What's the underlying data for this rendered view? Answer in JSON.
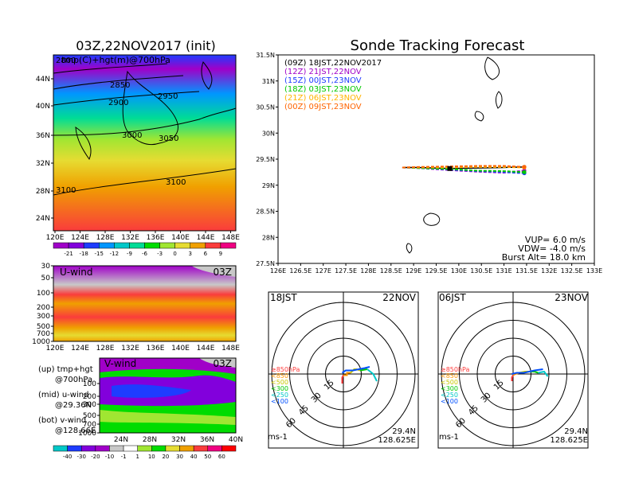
{
  "map_panel": {
    "title": "03Z,22NOV2017 (init)",
    "subtitle": "tmp(C)+hgt(m)@700hPa",
    "lat_ticks": [
      "44N",
      "40N",
      "36N",
      "32N",
      "28N",
      "24N"
    ],
    "lon_ticks": [
      "120E",
      "124E",
      "128E",
      "132E",
      "136E",
      "140E",
      "144E",
      "148E"
    ],
    "contour_labels": [
      "2800",
      "2850",
      "2900",
      "2950",
      "3000",
      "3050",
      "3100",
      "3100"
    ],
    "colorbar_labels": [
      "-21",
      "-18",
      "-15",
      "-12",
      "-9",
      "-6",
      "-3",
      "0",
      "3",
      "6",
      "9"
    ],
    "colorbar_colors": [
      "#a000c8",
      "#8200dc",
      "#1e3cff",
      "#0096ff",
      "#00c8c8",
      "#00dc96",
      "#00dc00",
      "#a0e632",
      "#e6dc32",
      "#f0a000",
      "#fa3c3c",
      "#f00082"
    ]
  },
  "uwind_panel": {
    "label": "U-wind",
    "time": "03Z",
    "p_ticks": [
      "30",
      "50",
      "100",
      "200",
      "300",
      "500",
      "700",
      "1000"
    ],
    "lon_ticks": [
      "120E",
      "124E",
      "128E",
      "132E",
      "136E",
      "140E",
      "144E",
      "148E"
    ]
  },
  "vwind_panel": {
    "label": "V-wind",
    "time": "03Z",
    "p_ticks": [
      "100",
      "200",
      "300",
      "500",
      "700",
      "1000"
    ],
    "lat_ticks": [
      "24N",
      "28N",
      "32N",
      "36N",
      "40N"
    ],
    "colorbar_labels": [
      "-40",
      "-30",
      "-20",
      "-10",
      "-1",
      "1",
      "10",
      "20",
      "30",
      "40",
      "50",
      "60"
    ],
    "colorbar_colors": [
      "#00c8c8",
      "#1e3cff",
      "#8200dc",
      "#a000c8",
      "#c8c8c8",
      "#ffffff",
      "#a0e632",
      "#00dc00",
      "#e6dc32",
      "#f0a000",
      "#fa3c3c",
      "#f00082",
      "#ff0000"
    ]
  },
  "legend_notes": {
    "line1": "(up) tmp+hgt",
    "line2": "@700hPa",
    "line3": "(mid) u-wind",
    "line4": "@29.36N",
    "line5": "(bot) v-wind",
    "line6": "@128.66E"
  },
  "tracking_panel": {
    "title": "Sonde Tracking Forecast",
    "vup": "VUP= 6.0 m/s",
    "vdw": "VDW= -4.0 m/s",
    "burst": "Burst Alt= 18.0 km"
  },
  "hodo_left": {
    "time": "18JST",
    "date": "22NOV",
    "lat": "29.4N",
    "lon": "128.625E",
    "unit": "ms-1"
  },
  "hodo_right": {
    "time": "06JST",
    "date": "23NOV",
    "lat": "29.4N",
    "lon": "128.625E",
    "unit": "ms-1"
  },
  "hodo_common": {
    "ring_labels": [
      "15",
      "30",
      "45",
      "60"
    ],
    "levels": [
      {
        "label": "≥850hPa",
        "color": "#ff3c3c"
      },
      {
        "label": "<850",
        "color": "#ff9600"
      },
      {
        "label": "<500",
        "color": "#c8c800"
      },
      {
        "label": "<300",
        "color": "#00c800"
      },
      {
        "label": "<250",
        "color": "#00c8c8"
      },
      {
        "label": "<100",
        "color": "#0050ff"
      }
    ]
  },
  "chart_data": [
    {
      "type": "line",
      "title": "Sonde Tracking Forecast",
      "xlabel": "",
      "ylabel": "",
      "xlim": [
        126,
        133
      ],
      "ylim": [
        27.5,
        31.5
      ],
      "x_ticks": [
        "126E",
        "126.5E",
        "127E",
        "127.5E",
        "128E",
        "128.5E",
        "129E",
        "129.5E",
        "130E",
        "130.5E",
        "131E",
        "131.5E",
        "132E",
        "132.5E",
        "133E"
      ],
      "y_ticks": [
        "27.5N",
        "28N",
        "28.5N",
        "29N",
        "29.5N",
        "30N",
        "30.5N",
        "31N",
        "31.5N"
      ],
      "series": [
        {
          "name": "(09Z) 18JST,22NOV2017",
          "color": "#000000",
          "x": [
            128.75,
            129.1,
            129.8,
            130.4,
            131.0,
            131.45
          ],
          "y": [
            29.34,
            29.34,
            29.32,
            29.33,
            29.34,
            29.35
          ]
        },
        {
          "name": "(12Z) 21JST,22NOV",
          "color": "#a000c8",
          "x": [
            128.75,
            129.1,
            129.8,
            130.4,
            131.0,
            131.45
          ],
          "y": [
            29.34,
            29.33,
            29.29,
            29.26,
            29.24,
            29.28
          ]
        },
        {
          "name": "(15Z) 00JST,23NOV",
          "color": "#1e3cff",
          "x": [
            128.75,
            129.1,
            129.8,
            130.4,
            131.0,
            131.45
          ],
          "y": [
            29.34,
            29.33,
            29.3,
            29.27,
            29.25,
            29.23
          ]
        },
        {
          "name": "(18Z) 03JST,23NOV",
          "color": "#00c800",
          "x": [
            128.75,
            129.1,
            129.8,
            130.4,
            131.0,
            131.45
          ],
          "y": [
            29.34,
            29.33,
            29.31,
            29.28,
            29.27,
            29.25
          ]
        },
        {
          "name": "(21Z) 06JST,23NOV",
          "color": "#ffb400",
          "x": [
            128.75,
            129.1,
            129.8,
            130.4,
            131.0,
            131.45
          ],
          "y": [
            29.34,
            29.34,
            29.34,
            29.35,
            29.35,
            29.34
          ]
        },
        {
          "name": "(00Z) 09JST,23NOV",
          "color": "#ff6400",
          "x": [
            128.75,
            129.1,
            129.8,
            130.4,
            131.0,
            131.45
          ],
          "y": [
            29.34,
            29.35,
            29.36,
            29.37,
            29.37,
            29.35
          ]
        }
      ]
    },
    {
      "type": "line",
      "title": "18JST 22NOV",
      "series": [
        {
          "name": "≥850hPa",
          "color": "#ff3c3c",
          "u": [
            -1,
            -1,
            0
          ],
          "v": [
            -8,
            -3,
            -1
          ]
        },
        {
          "name": "<850",
          "color": "#ff9600",
          "u": [
            0,
            3,
            3,
            6
          ],
          "v": [
            -1,
            -1,
            1,
            1
          ]
        },
        {
          "name": "<500",
          "color": "#c8c800",
          "u": [
            6,
            9,
            11,
            14
          ],
          "v": [
            1,
            4,
            4,
            3
          ]
        },
        {
          "name": "<300",
          "color": "#00c800",
          "u": [
            14,
            20
          ],
          "v": [
            3,
            4
          ]
        },
        {
          "name": "<250",
          "color": "#00c8c8",
          "u": [
            20,
            25,
            28
          ],
          "v": [
            4,
            0,
            -6
          ]
        },
        {
          "name": "<100",
          "color": "#0050ff",
          "u": [
            -1,
            2,
            8,
            18,
            22
          ],
          "v": [
            1,
            3,
            3,
            5,
            6
          ]
        }
      ]
    },
    {
      "type": "line",
      "title": "06JST 23NOV",
      "series": [
        {
          "name": "≥850hPa",
          "color": "#ff3c3c",
          "u": [
            -1,
            -1,
            0
          ],
          "v": [
            -6,
            -3,
            -1
          ]
        },
        {
          "name": "<850",
          "color": "#ff9600",
          "u": [
            0,
            2,
            5
          ],
          "v": [
            -1,
            0,
            1
          ]
        },
        {
          "name": "<500",
          "color": "#c8c800",
          "u": [
            5,
            10,
            13
          ],
          "v": [
            1,
            2,
            2
          ]
        },
        {
          "name": "<300",
          "color": "#00c800",
          "u": [
            13,
            18,
            21
          ],
          "v": [
            2,
            2,
            1
          ]
        },
        {
          "name": "<250",
          "color": "#00c8c8",
          "u": [
            21,
            26,
            29
          ],
          "v": [
            1,
            2,
            -2
          ]
        },
        {
          "name": "<100",
          "color": "#0050ff",
          "u": [
            -1,
            3,
            9,
            18,
            25
          ],
          "v": [
            0,
            1,
            1,
            3,
            4
          ]
        }
      ]
    }
  ]
}
